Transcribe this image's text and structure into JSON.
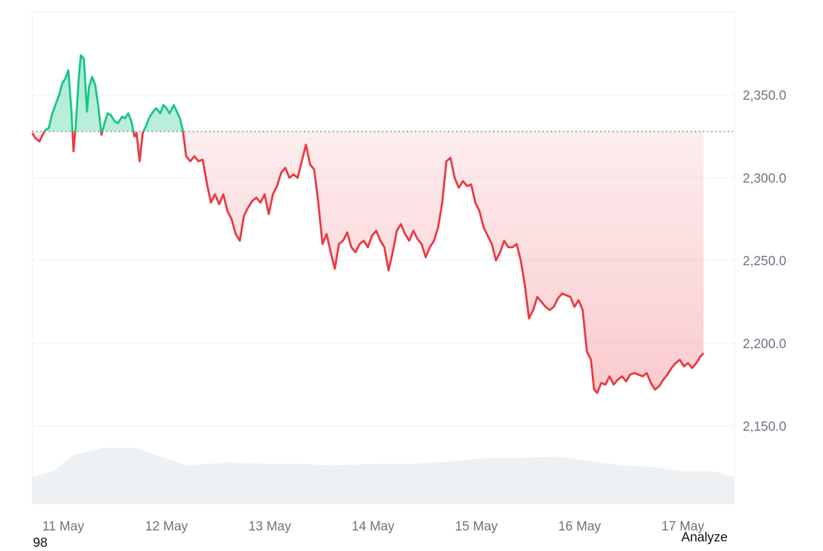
{
  "chart_data": {
    "type": "line",
    "baseline": 2328,
    "ylim": [
      2103,
      2400
    ],
    "yticks": [
      2350,
      2300,
      2250,
      2200,
      2150
    ],
    "ytick_labels": [
      "2,350.0",
      "2,300.0",
      "2,250.0",
      "2,200.0",
      "2,150.0"
    ],
    "xlim": [
      10.7,
      17.5
    ],
    "xtick_positions": [
      11,
      12,
      13,
      14,
      15,
      16,
      17
    ],
    "xtick_labels": [
      "11 May",
      "12 May",
      "13 May",
      "14 May",
      "15 May",
      "16 May",
      "17 May"
    ],
    "grid": true,
    "colors": {
      "up": "#16c784",
      "down": "#ea3943",
      "grid": "#eceff3",
      "volume": "#eef1f4",
      "axis_text": "#6b7280"
    },
    "series": [
      {
        "values": [
          [
            10.7,
            2327
          ],
          [
            10.73,
            2324
          ],
          [
            10.77,
            2322
          ],
          [
            10.8,
            2326
          ],
          [
            10.83,
            2329
          ],
          [
            10.86,
            2330
          ],
          [
            10.89,
            2338
          ],
          [
            10.93,
            2345
          ],
          [
            10.96,
            2350
          ],
          [
            10.99,
            2357
          ],
          [
            11.02,
            2360
          ],
          [
            11.05,
            2365
          ],
          [
            11.08,
            2340
          ],
          [
            11.1,
            2316
          ],
          [
            11.12,
            2330
          ],
          [
            11.15,
            2360
          ],
          [
            11.17,
            2374
          ],
          [
            11.2,
            2372
          ],
          [
            11.23,
            2340
          ],
          [
            11.25,
            2355
          ],
          [
            11.28,
            2361
          ],
          [
            11.31,
            2356
          ],
          [
            11.34,
            2343
          ],
          [
            11.37,
            2326
          ],
          [
            11.4,
            2333
          ],
          [
            11.43,
            2339
          ],
          [
            11.46,
            2338
          ],
          [
            11.5,
            2334
          ],
          [
            11.53,
            2333
          ],
          [
            11.57,
            2337
          ],
          [
            11.6,
            2336
          ],
          [
            11.63,
            2339
          ],
          [
            11.66,
            2334
          ],
          [
            11.69,
            2325
          ],
          [
            11.71,
            2327
          ],
          [
            11.74,
            2310
          ],
          [
            11.77,
            2327
          ],
          [
            11.8,
            2331
          ],
          [
            11.83,
            2336
          ],
          [
            11.87,
            2340
          ],
          [
            11.9,
            2342
          ],
          [
            11.94,
            2339
          ],
          [
            11.97,
            2344
          ],
          [
            12.0,
            2342
          ],
          [
            12.03,
            2339
          ],
          [
            12.07,
            2344
          ],
          [
            12.1,
            2340
          ],
          [
            12.13,
            2336
          ],
          [
            12.16,
            2328
          ],
          [
            12.19,
            2313
          ],
          [
            12.23,
            2310
          ],
          [
            12.27,
            2313
          ],
          [
            12.31,
            2310
          ],
          [
            12.35,
            2311
          ],
          [
            12.39,
            2297
          ],
          [
            12.43,
            2285
          ],
          [
            12.47,
            2290
          ],
          [
            12.51,
            2284
          ],
          [
            12.55,
            2290
          ],
          [
            12.59,
            2280
          ],
          [
            12.63,
            2275
          ],
          [
            12.67,
            2266
          ],
          [
            12.71,
            2262
          ],
          [
            12.75,
            2277
          ],
          [
            12.79,
            2282
          ],
          [
            12.83,
            2286
          ],
          [
            12.87,
            2288
          ],
          [
            12.91,
            2285
          ],
          [
            12.95,
            2290
          ],
          [
            12.99,
            2278
          ],
          [
            13.03,
            2290
          ],
          [
            13.07,
            2295
          ],
          [
            13.11,
            2303
          ],
          [
            13.15,
            2306
          ],
          [
            13.19,
            2300
          ],
          [
            13.23,
            2302
          ],
          [
            13.27,
            2300
          ],
          [
            13.31,
            2310
          ],
          [
            13.35,
            2320
          ],
          [
            13.39,
            2308
          ],
          [
            13.43,
            2305
          ],
          [
            13.47,
            2285
          ],
          [
            13.51,
            2260
          ],
          [
            13.55,
            2266
          ],
          [
            13.59,
            2255
          ],
          [
            13.63,
            2245
          ],
          [
            13.67,
            2260
          ],
          [
            13.71,
            2262
          ],
          [
            13.75,
            2267
          ],
          [
            13.79,
            2258
          ],
          [
            13.83,
            2255
          ],
          [
            13.87,
            2260
          ],
          [
            13.91,
            2262
          ],
          [
            13.95,
            2258
          ],
          [
            13.99,
            2265
          ],
          [
            14.03,
            2268
          ],
          [
            14.07,
            2262
          ],
          [
            14.11,
            2258
          ],
          [
            14.15,
            2244
          ],
          [
            14.19,
            2255
          ],
          [
            14.23,
            2268
          ],
          [
            14.27,
            2272
          ],
          [
            14.31,
            2266
          ],
          [
            14.35,
            2262
          ],
          [
            14.39,
            2268
          ],
          [
            14.43,
            2263
          ],
          [
            14.47,
            2260
          ],
          [
            14.51,
            2252
          ],
          [
            14.55,
            2258
          ],
          [
            14.59,
            2262
          ],
          [
            14.63,
            2270
          ],
          [
            14.67,
            2285
          ],
          [
            14.71,
            2310
          ],
          [
            14.75,
            2312
          ],
          [
            14.79,
            2300
          ],
          [
            14.83,
            2294
          ],
          [
            14.87,
            2298
          ],
          [
            14.91,
            2295
          ],
          [
            14.95,
            2296
          ],
          [
            14.99,
            2285
          ],
          [
            15.03,
            2280
          ],
          [
            15.07,
            2270
          ],
          [
            15.11,
            2265
          ],
          [
            15.15,
            2260
          ],
          [
            15.19,
            2250
          ],
          [
            15.23,
            2255
          ],
          [
            15.27,
            2262
          ],
          [
            15.31,
            2258
          ],
          [
            15.35,
            2258
          ],
          [
            15.39,
            2260
          ],
          [
            15.43,
            2250
          ],
          [
            15.47,
            2235
          ],
          [
            15.51,
            2215
          ],
          [
            15.55,
            2220
          ],
          [
            15.59,
            2228
          ],
          [
            15.63,
            2225
          ],
          [
            15.67,
            2222
          ],
          [
            15.71,
            2220
          ],
          [
            15.75,
            2222
          ],
          [
            15.79,
            2227
          ],
          [
            15.83,
            2230
          ],
          [
            15.87,
            2229
          ],
          [
            15.91,
            2228
          ],
          [
            15.95,
            2222
          ],
          [
            15.99,
            2226
          ],
          [
            16.03,
            2220
          ],
          [
            16.07,
            2195
          ],
          [
            16.11,
            2190
          ],
          [
            16.14,
            2172
          ],
          [
            16.17,
            2170
          ],
          [
            16.21,
            2176
          ],
          [
            16.25,
            2175
          ],
          [
            16.29,
            2180
          ],
          [
            16.33,
            2175
          ],
          [
            16.37,
            2178
          ],
          [
            16.41,
            2180
          ],
          [
            16.45,
            2177
          ],
          [
            16.49,
            2181
          ],
          [
            16.53,
            2182
          ],
          [
            16.57,
            2181
          ],
          [
            16.61,
            2180
          ],
          [
            16.65,
            2182
          ],
          [
            16.69,
            2176
          ],
          [
            16.73,
            2172
          ],
          [
            16.77,
            2174
          ],
          [
            16.81,
            2178
          ],
          [
            16.85,
            2181
          ],
          [
            16.89,
            2185
          ],
          [
            16.93,
            2188
          ],
          [
            16.97,
            2190
          ],
          [
            17.01,
            2186
          ],
          [
            17.05,
            2188
          ],
          [
            17.09,
            2185
          ],
          [
            17.13,
            2188
          ],
          [
            17.17,
            2192
          ],
          [
            17.2,
            2194
          ]
        ]
      }
    ],
    "volume": [
      [
        10.7,
        0.18
      ],
      [
        10.9,
        0.22
      ],
      [
        11.1,
        0.33
      ],
      [
        11.4,
        0.38
      ],
      [
        11.7,
        0.38
      ],
      [
        11.9,
        0.33
      ],
      [
        12.2,
        0.26
      ],
      [
        12.6,
        0.28
      ],
      [
        13.0,
        0.27
      ],
      [
        13.3,
        0.27
      ],
      [
        13.6,
        0.26
      ],
      [
        14.0,
        0.27
      ],
      [
        14.4,
        0.27
      ],
      [
        14.8,
        0.29
      ],
      [
        15.1,
        0.31
      ],
      [
        15.4,
        0.31
      ],
      [
        15.8,
        0.32
      ],
      [
        16.1,
        0.29
      ],
      [
        16.4,
        0.26
      ],
      [
        16.7,
        0.25
      ],
      [
        17.0,
        0.22
      ],
      [
        17.3,
        0.22
      ],
      [
        17.5,
        0.18
      ]
    ]
  },
  "footer": {
    "left_text": "98",
    "right_text": "Analyze"
  }
}
